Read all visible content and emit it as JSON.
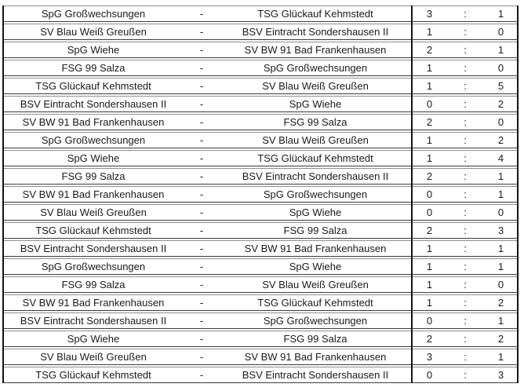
{
  "page": {
    "background": "#ffffff"
  },
  "results_table": {
    "separator": "-",
    "score_separator": ":",
    "colors": {
      "border_light": "#8f8f8f",
      "border_dark": "#3c3c3c",
      "vertical_line": "#141414",
      "text": "#1a1a1a"
    },
    "rows": [
      {
        "home": "SpG Großwechsungen",
        "away": "TSG Glückauf Kehmstedt",
        "home_score": 3,
        "away_score": 1
      },
      {
        "home": "SV Blau Weiß Greußen",
        "away": "BSV Eintracht Sondershausen II",
        "home_score": 1,
        "away_score": 0
      },
      {
        "home": "SpG Wiehe",
        "away": "SV BW 91 Bad Frankenhausen",
        "home_score": 2,
        "away_score": 1
      },
      {
        "home": "FSG 99 Salza",
        "away": "SpG Großwechsungen",
        "home_score": 1,
        "away_score": 0
      },
      {
        "home": "TSG Glückauf Kehmstedt",
        "away": "SV Blau Weiß Greußen",
        "home_score": 1,
        "away_score": 5
      },
      {
        "home": "BSV Eintracht Sondershausen II",
        "away": "SpG Wiehe",
        "home_score": 0,
        "away_score": 2
      },
      {
        "home": "SV BW 91 Bad Frankenhausen",
        "away": "FSG 99 Salza",
        "home_score": 2,
        "away_score": 0
      },
      {
        "home": "SpG Großwechsungen",
        "away": "SV Blau Weiß Greußen",
        "home_score": 1,
        "away_score": 2
      },
      {
        "home": "SpG Wiehe",
        "away": "TSG Glückauf Kehmstedt",
        "home_score": 1,
        "away_score": 4
      },
      {
        "home": "FSG 99 Salza",
        "away": "BSV Eintracht Sondershausen II",
        "home_score": 2,
        "away_score": 1
      },
      {
        "home": "SV BW 91 Bad Frankenhausen",
        "away": "SpG Großwechsungen",
        "home_score": 0,
        "away_score": 1
      },
      {
        "home": "SV Blau Weiß Greußen",
        "away": "SpG Wiehe",
        "home_score": 0,
        "away_score": 0
      },
      {
        "home": "TSG Glückauf Kehmstedt",
        "away": "FSG 99 Salza",
        "home_score": 2,
        "away_score": 3
      },
      {
        "home": "BSV Eintracht Sondershausen II",
        "away": "SV BW 91 Bad Frankenhausen",
        "home_score": 1,
        "away_score": 1
      },
      {
        "home": "SpG Großwechsungen",
        "away": "SpG Wiehe",
        "home_score": 1,
        "away_score": 1
      },
      {
        "home": "FSG 99 Salza",
        "away": "SV Blau Weiß Greußen",
        "home_score": 1,
        "away_score": 0
      },
      {
        "home": "SV BW 91 Bad Frankenhausen",
        "away": "TSG Glückauf Kehmstedt",
        "home_score": 1,
        "away_score": 2
      },
      {
        "home": "BSV Eintracht Sondershausen II",
        "away": "SpG Großwechsungen",
        "home_score": 0,
        "away_score": 1
      },
      {
        "home": "SpG Wiehe",
        "away": "FSG 99 Salza",
        "home_score": 2,
        "away_score": 2
      },
      {
        "home": "SV Blau Weiß Greußen",
        "away": "SV BW 91 Bad Frankenhausen",
        "home_score": 3,
        "away_score": 1
      },
      {
        "home": "TSG Glückauf Kehmstedt",
        "away": "BSV Eintracht Sondershausen II",
        "home_score": 0,
        "away_score": 3
      }
    ]
  }
}
